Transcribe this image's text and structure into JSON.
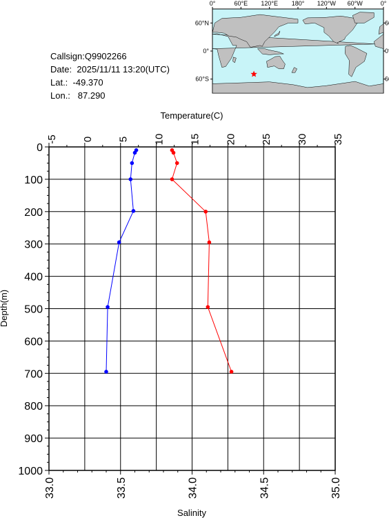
{
  "station": {
    "callsign_label": "Callsign:",
    "callsign": "Q9902266",
    "date_label": "Date:",
    "date": "2025/11/11 13:20(UTC)",
    "lat_label": "Lat.:",
    "lat": "-49.370",
    "lon_label": "Lon.:",
    "lon": "87.290"
  },
  "map": {
    "lon_ticks": [
      "0°",
      "60°E",
      "120°E",
      "180°",
      "120°W",
      "60°W",
      "0°"
    ],
    "lat_ticks": [
      "60°N",
      "0°",
      "60°S"
    ],
    "marker": {
      "lon": 87.29,
      "lat": -49.37
    },
    "colors": {
      "ocean": "#c8f4f8",
      "land": "#c0c0c0",
      "marker": "#ff0000"
    }
  },
  "chart_data": {
    "type": "line",
    "top_axis": {
      "label": "Temperature(C)",
      "range": [
        -5,
        35
      ],
      "ticks": [
        "-5",
        "0",
        "5",
        "10",
        "15",
        "20",
        "25",
        "30",
        "35"
      ]
    },
    "bottom_axis": {
      "label": "Salinity",
      "range": [
        33.0,
        35.0
      ],
      "ticks": [
        "33.0",
        "33.5",
        "34.0",
        "34.5",
        "35.0"
      ]
    },
    "y_axis": {
      "label": "Depth(m)",
      "range": [
        0,
        1000
      ],
      "inverted": true,
      "ticks": [
        "0",
        "100",
        "200",
        "300",
        "400",
        "500",
        "600",
        "700",
        "800",
        "900",
        "1000"
      ]
    },
    "grid": true,
    "series": [
      {
        "quantity": "temperature",
        "color": "#ff0000",
        "points": [
          [
            12.2,
            10
          ],
          [
            12.4,
            18
          ],
          [
            12.9,
            50
          ],
          [
            12.2,
            100
          ],
          [
            16.9,
            200
          ],
          [
            17.4,
            295
          ],
          [
            17.2,
            495
          ],
          [
            20.5,
            695
          ]
        ]
      },
      {
        "quantity": "salinity",
        "color": "#0000ff",
        "points": [
          [
            33.61,
            10
          ],
          [
            33.6,
            18
          ],
          [
            33.58,
            50
          ],
          [
            33.57,
            100
          ],
          [
            33.59,
            198
          ],
          [
            33.49,
            295
          ],
          [
            33.41,
            495
          ],
          [
            33.4,
            695
          ]
        ]
      }
    ]
  }
}
